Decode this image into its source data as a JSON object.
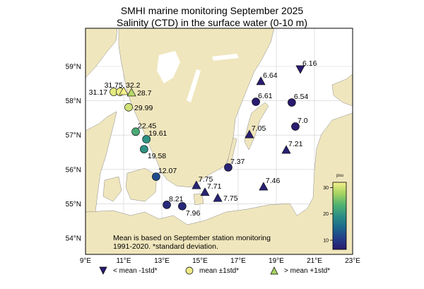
{
  "title": "SMHI marine monitoring September 2025",
  "subtitle": "Salinity (CTD) in the surface water (0-10 m)",
  "map": {
    "lon_range": [
      9,
      23
    ],
    "lat_range": [
      53.5,
      60.1
    ],
    "lon_ticks": [
      "9°E",
      "11°E",
      "13°E",
      "15°E",
      "17°E",
      "19°E",
      "21°E",
      "23°E"
    ],
    "lat_ticks": [
      "54°N",
      "55°N",
      "56°N",
      "57°N",
      "58°N",
      "59°N"
    ],
    "land_color": "#f0e6bd",
    "water_color": "#ffffff",
    "grid": true
  },
  "stations": [
    {
      "lon": 10.48,
      "lat": 58.26,
      "value": "31.17",
      "marker": "circle",
      "label_pos": "left"
    },
    {
      "lon": 10.81,
      "lat": 58.26,
      "value": "31.75",
      "marker": "circle",
      "label_pos": "above-left"
    },
    {
      "lon": 11.0,
      "lat": 58.28,
      "value": "32.2",
      "marker": "triangle-up",
      "label_pos": "above-right"
    },
    {
      "lon": 11.41,
      "lat": 58.24,
      "value": "28.7",
      "marker": "triangle-up",
      "label_pos": "right"
    },
    {
      "lon": 11.26,
      "lat": 57.81,
      "value": "29.99",
      "marker": "circle",
      "label_pos": "right"
    },
    {
      "lon": 11.63,
      "lat": 57.1,
      "value": "22.45",
      "marker": "circle",
      "label_pos": "above-right"
    },
    {
      "lon": 12.19,
      "lat": 56.88,
      "value": "19.61",
      "marker": "circle",
      "label_pos": "above-right"
    },
    {
      "lon": 12.07,
      "lat": 56.59,
      "value": "19.58",
      "marker": "circle",
      "label_pos": "below-right"
    },
    {
      "lon": 12.7,
      "lat": 55.79,
      "value": "12.07",
      "marker": "circle",
      "label_pos": "above-right"
    },
    {
      "lon": 13.26,
      "lat": 54.97,
      "value": "8.21",
      "marker": "circle",
      "label_pos": "above-right"
    },
    {
      "lon": 14.07,
      "lat": 54.93,
      "value": "7.96",
      "marker": "circle",
      "label_pos": "below-right"
    },
    {
      "lon": 14.81,
      "lat": 55.54,
      "value": "7.75",
      "marker": "triangle-down-filled-up",
      "label_pos": "above-right"
    },
    {
      "lon": 15.26,
      "lat": 55.34,
      "value": "7.71",
      "marker": "triangle-up",
      "label_pos": "above-right"
    },
    {
      "lon": 15.93,
      "lat": 55.17,
      "value": "7.75",
      "marker": "triangle-up",
      "label_pos": "right"
    },
    {
      "lon": 16.48,
      "lat": 56.06,
      "value": "7.37",
      "marker": "circle",
      "label_pos": "above-right"
    },
    {
      "lon": 18.33,
      "lat": 55.5,
      "value": "7.46",
      "marker": "triangle-up",
      "label_pos": "above-right"
    },
    {
      "lon": 18.19,
      "lat": 58.57,
      "value": "6.64",
      "marker": "triangle-up",
      "label_pos": "above-right"
    },
    {
      "lon": 20.26,
      "lat": 58.92,
      "value": "6.16",
      "marker": "triangle-down",
      "label_pos": "above-right"
    },
    {
      "lon": 17.93,
      "lat": 57.97,
      "value": "6.61",
      "marker": "circle",
      "label_pos": "above-right"
    },
    {
      "lon": 19.81,
      "lat": 57.95,
      "value": "6.54",
      "marker": "circle",
      "label_pos": "above-right"
    },
    {
      "lon": 20.0,
      "lat": 57.25,
      "value": "7.0",
      "marker": "circle",
      "label_pos": "above-right"
    },
    {
      "lon": 17.59,
      "lat": 57.02,
      "value": "7.05",
      "marker": "triangle-up",
      "label_pos": "above-right"
    },
    {
      "lon": 19.52,
      "lat": 56.57,
      "value": "7.21",
      "marker": "triangle-up",
      "label_pos": "above-right"
    }
  ],
  "colorbar": {
    "label": "psu",
    "range": [
      6.5,
      32
    ],
    "ticks": [
      "10",
      "20",
      "30"
    ],
    "colors": [
      "#2a1a6e",
      "#223f8a",
      "#1c6a8c",
      "#2c8f86",
      "#52b370",
      "#a6d360",
      "#f4ef8a"
    ]
  },
  "note": {
    "line1": "Mean is based on September station monitoring",
    "line2": "1991-2020. *standard deviation."
  },
  "legend": [
    {
      "marker": "triangle-down",
      "label": "< mean -1std*",
      "color": "#2a1a6e"
    },
    {
      "marker": "circle",
      "label": "mean ±1std*",
      "color": "#f0ec8a"
    },
    {
      "marker": "triangle-up",
      "label": "> mean +1std*",
      "color": "#a6d360"
    }
  ]
}
